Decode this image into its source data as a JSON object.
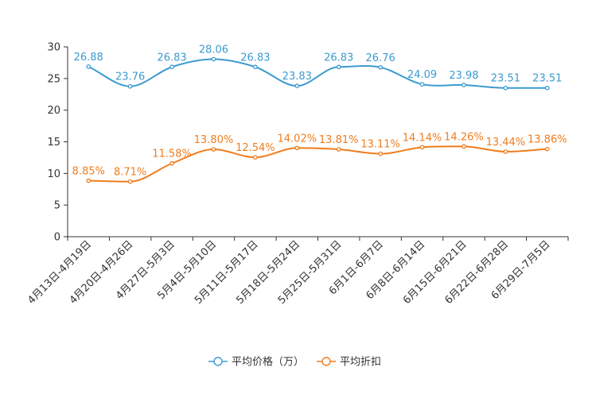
{
  "chart_data": {
    "type": "line",
    "title": "",
    "xlabel": "",
    "ylabel": "",
    "ylim": [
      0,
      30
    ],
    "yticks": [
      0,
      5,
      10,
      15,
      20,
      25,
      30
    ],
    "grid": false,
    "legend_position": "bottom-center",
    "categories": [
      "4月13日-4月19日",
      "4月20日-4月26日",
      "4月27日-5月3日",
      "5月4日-5月10日",
      "5月11日-5月17日",
      "5月18日-5月24日",
      "5月25日-5月31日",
      "6月1日-6月7日",
      "6月8日-6月14日",
      "6月15日-6月21日",
      "6月22日-6月28日",
      "6月29日-7月5日"
    ],
    "series": [
      {
        "name": "平均价格（万）",
        "color": "#3a9bd0",
        "values": [
          26.88,
          23.76,
          26.83,
          28.06,
          26.83,
          23.83,
          26.83,
          26.76,
          24.09,
          23.98,
          23.51,
          23.51
        ],
        "labels": [
          "26.88",
          "23.76",
          "26.83",
          "28.06",
          "26.83",
          "23.83",
          "26.83",
          "26.76",
          "24.09",
          "23.98",
          "23.51",
          "23.51"
        ]
      },
      {
        "name": "平均折扣",
        "color": "#f07c1c",
        "values": [
          8.85,
          8.71,
          11.58,
          13.8,
          12.54,
          14.02,
          13.81,
          13.11,
          14.14,
          14.26,
          13.44,
          13.86
        ],
        "labels": [
          "8.85%",
          "8.71%",
          "11.58%",
          "13.80%",
          "12.54%",
          "14.02%",
          "13.81%",
          "13.11%",
          "14.14%",
          "14.26%",
          "13.44%",
          "13.86%"
        ]
      }
    ]
  }
}
